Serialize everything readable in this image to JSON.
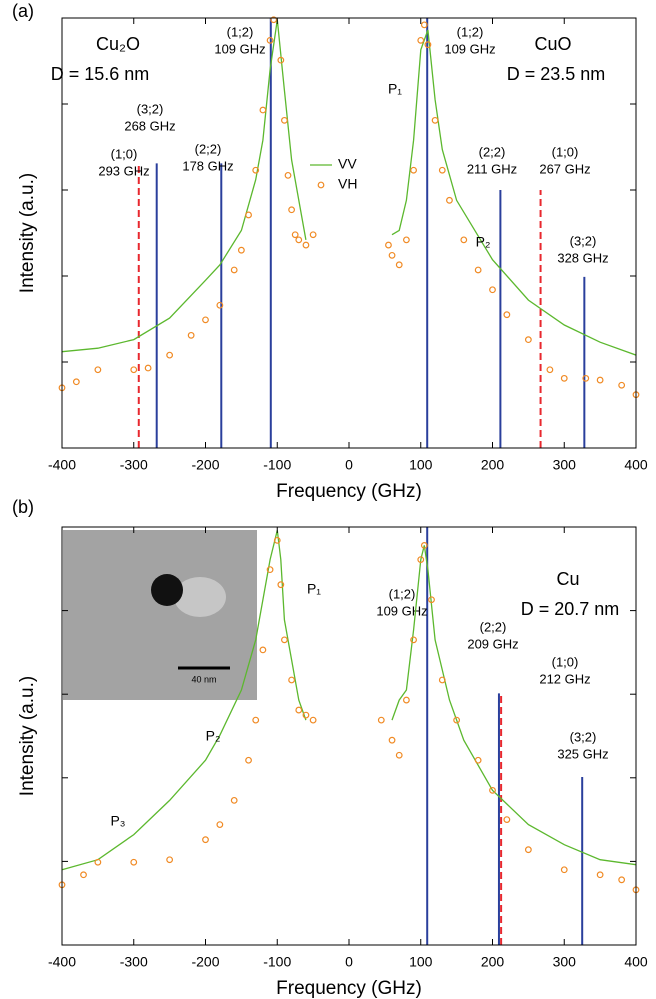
{
  "chart_data": [
    {
      "type": "line",
      "panel_label": "(a)",
      "xlabel": "Frequency (GHz)",
      "ylabel": "Intensity (a.u.)",
      "xlim": [
        -400,
        400
      ],
      "xticks": [
        -400,
        -300,
        -200,
        -100,
        0,
        100,
        200,
        300,
        400
      ],
      "ylim": [
        0,
        5
      ],
      "yticks": [
        1,
        2,
        3,
        4
      ],
      "legend": true,
      "series": [
        {
          "name": "VV",
          "color": "#5cb82e",
          "style": "line",
          "x": [
            -400,
            -350,
            -300,
            -250,
            -200,
            -180,
            -150,
            -130,
            -120,
            -110,
            -100,
            -90,
            -80,
            -70,
            -60,
            null,
            60,
            70,
            80,
            90,
            100,
            110,
            120,
            130,
            150,
            200,
            250,
            300,
            350,
            400
          ],
          "values": [
            1.12,
            1.16,
            1.26,
            1.51,
            1.95,
            2.13,
            2.53,
            3.12,
            3.58,
            4.4,
            4.98,
            4.16,
            3.35,
            2.88,
            2.42,
            null,
            2.48,
            2.53,
            2.88,
            3.58,
            4.63,
            4.86,
            4.05,
            3.47,
            2.88,
            2.19,
            1.72,
            1.43,
            1.23,
            1.08
          ]
        },
        {
          "name": "VH",
          "color": "#f08a24",
          "style": "markers",
          "x": [
            -400,
            -380,
            -350,
            -300,
            -280,
            -250,
            -220,
            -200,
            -180,
            -160,
            -150,
            -140,
            -130,
            -120,
            -110,
            -105,
            -95,
            -90,
            -85,
            -80,
            -75,
            -70,
            -60,
            -50,
            55,
            60,
            70,
            80,
            90,
            100,
            105,
            110,
            120,
            130,
            140,
            160,
            180,
            200,
            220,
            250,
            280,
            300,
            330,
            350,
            380,
            400
          ],
          "values": [
            0.7,
            0.77,
            0.91,
            0.91,
            0.93,
            1.08,
            1.31,
            1.49,
            1.66,
            2.07,
            2.3,
            2.71,
            3.23,
            3.93,
            4.74,
            4.98,
            4.51,
            3.81,
            3.17,
            2.77,
            2.48,
            2.42,
            2.36,
            2.48,
            2.36,
            2.24,
            2.13,
            2.42,
            3.23,
            4.74,
            4.92,
            4.69,
            3.81,
            3.23,
            2.88,
            2.42,
            2.07,
            1.84,
            1.55,
            1.26,
            0.91,
            0.81,
            0.81,
            0.79,
            0.73,
            0.62
          ]
        }
      ],
      "reference_lines": [
        {
          "x": -293,
          "ymax": 3.29,
          "color": "#e8282e",
          "dashed": true,
          "mode": "(1;0)",
          "label": "293 GHz"
        },
        {
          "x": -268,
          "ymax": 3.31,
          "color": "#2a3f9c",
          "dashed": false,
          "mode": "(3;2)",
          "label": "268 GHz"
        },
        {
          "x": -178,
          "ymax": 3.31,
          "color": "#2a3f9c",
          "dashed": false,
          "mode": "(2;2)",
          "label": "178 GHz"
        },
        {
          "x": -109,
          "ymax": 5,
          "color": "#2a3f9c",
          "dashed": false,
          "mode": "(1;2)",
          "label": "109 GHz"
        },
        {
          "x": 109,
          "ymax": 5,
          "color": "#2a3f9c",
          "dashed": false,
          "mode": "(1;2)",
          "label": "109 GHz"
        },
        {
          "x": 211,
          "ymax": 3.0,
          "color": "#2a3f9c",
          "dashed": false,
          "mode": "(2;2)",
          "label": "211 GHz"
        },
        {
          "x": 267,
          "ymax": 3.0,
          "color": "#e8282e",
          "dashed": true,
          "mode": "(1;0)",
          "label": "267 GHz"
        },
        {
          "x": 328,
          "ymax": 1.99,
          "color": "#2a3f9c",
          "dashed": false,
          "mode": "(3;2)",
          "label": "328 GHz"
        }
      ],
      "annotations": [
        "Cu₂O",
        "D = 15.6 nm",
        "CuO",
        "D = 23.5 nm",
        "P₁",
        "P₂"
      ]
    },
    {
      "type": "line",
      "panel_label": "(b)",
      "xlabel": "Frequency (GHz)",
      "ylabel": "Intensity (a.u.)",
      "xlim": [
        -400,
        400
      ],
      "xticks": [
        -400,
        -300,
        -200,
        -100,
        0,
        100,
        200,
        300,
        400
      ],
      "ylim": [
        0,
        5
      ],
      "yticks": [
        1,
        2,
        3,
        4
      ],
      "legend": false,
      "series": [
        {
          "name": "VV",
          "color": "#5cb82e",
          "style": "line",
          "x": [
            -400,
            -350,
            -300,
            -250,
            -200,
            -180,
            -150,
            -130,
            -120,
            -110,
            -100,
            -95,
            -90,
            -80,
            -70,
            -60,
            null,
            60,
            70,
            80,
            90,
            100,
            105,
            110,
            120,
            140,
            160,
            200,
            250,
            300,
            350,
            400
          ],
          "values": [
            0.9,
            1.02,
            1.32,
            1.73,
            2.21,
            2.51,
            3.05,
            3.65,
            4.13,
            4.61,
            4.96,
            4.61,
            3.89,
            3.41,
            2.93,
            2.69,
            null,
            2.69,
            2.93,
            3.05,
            3.77,
            4.61,
            4.78,
            4.49,
            3.65,
            2.93,
            2.45,
            1.85,
            1.44,
            1.2,
            1.02,
            0.96
          ]
        },
        {
          "name": "VH",
          "color": "#f08a24",
          "style": "markers",
          "x": [
            -400,
            -370,
            -350,
            -300,
            -250,
            -200,
            -180,
            -160,
            -140,
            -130,
            -120,
            -110,
            -100,
            -95,
            -90,
            -80,
            -70,
            -60,
            -50,
            45,
            60,
            70,
            80,
            90,
            100,
            105,
            115,
            130,
            150,
            180,
            200,
            220,
            250,
            300,
            350,
            380,
            400
          ],
          "values": [
            0.72,
            0.84,
            0.99,
            0.99,
            1.02,
            1.26,
            1.44,
            1.73,
            2.21,
            2.69,
            3.53,
            4.49,
            4.84,
            4.31,
            3.65,
            3.17,
            2.81,
            2.75,
            2.69,
            2.69,
            2.45,
            2.27,
            2.93,
            3.65,
            4.61,
            4.78,
            4.13,
            3.17,
            2.69,
            2.21,
            1.85,
            1.5,
            1.14,
            0.9,
            0.84,
            0.78,
            0.66
          ]
        }
      ],
      "reference_lines": [
        {
          "x": 109,
          "ymax": 5,
          "color": "#2a3f9c",
          "dashed": false,
          "mode": "(1;2)",
          "label": "109 GHz"
        },
        {
          "x": 209,
          "ymax": 3.01,
          "color": "#2a3f9c",
          "dashed": false,
          "mode": "(2;2)",
          "label": "209 GHz"
        },
        {
          "x": 212,
          "ymax": 3.01,
          "color": "#e8282e",
          "dashed": true,
          "mode": "(1;0)",
          "label": "212 GHz"
        },
        {
          "x": 325,
          "ymax": 2.01,
          "color": "#2a3f9c",
          "dashed": false,
          "mode": "(3;2)",
          "label": "325 GHz"
        }
      ],
      "annotations": [
        "Cu",
        "D = 20.7 nm",
        "P₁",
        "P₂",
        "P₃"
      ],
      "inset_scale_label": "40 nm"
    }
  ]
}
